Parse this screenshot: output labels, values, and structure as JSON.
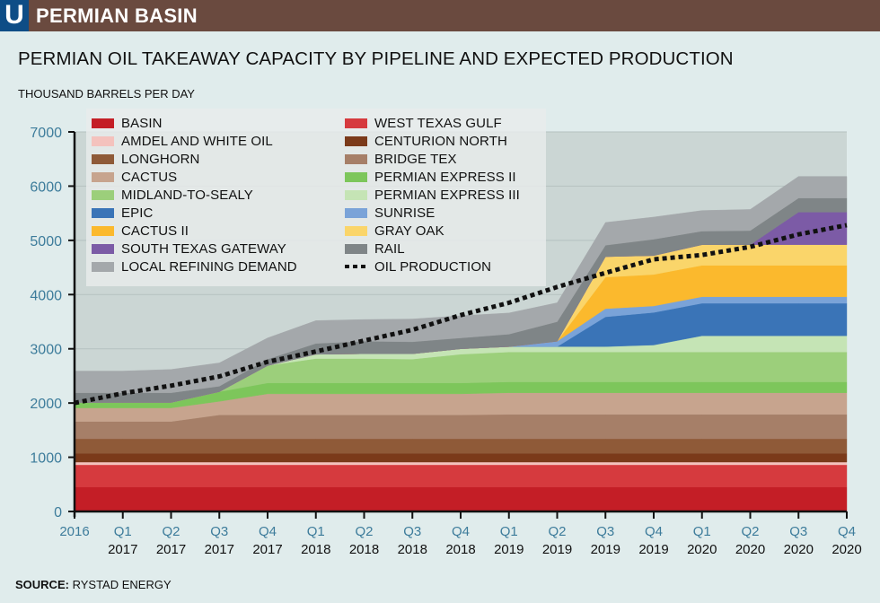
{
  "header": {
    "logo_letter": "U",
    "section_title": "PERMIAN BASIN"
  },
  "chart_data": {
    "type": "area",
    "stacked": true,
    "title": "PERMIAN OIL TAKEAWAY CAPACITY BY PIPELINE AND EXPECTED PRODUCTION",
    "ylabel": "THOUSAND BARRELS PER DAY",
    "xlabel": "",
    "ylim": [
      0,
      7000
    ],
    "yticks": [
      0,
      1000,
      2000,
      3000,
      4000,
      5000,
      6000,
      7000
    ],
    "grid": true,
    "legend_position": "top-left",
    "x_ticks": [
      {
        "q": "2016",
        "year": ""
      },
      {
        "q": "Q1",
        "year": "2017"
      },
      {
        "q": "Q2",
        "year": "2017"
      },
      {
        "q": "Q3",
        "year": "2017"
      },
      {
        "q": "Q4",
        "year": "2017"
      },
      {
        "q": "Q1",
        "year": "2018"
      },
      {
        "q": "Q2",
        "year": "2018"
      },
      {
        "q": "Q3",
        "year": "2018"
      },
      {
        "q": "Q4",
        "year": "2018"
      },
      {
        "q": "Q1",
        "year": "2019"
      },
      {
        "q": "Q2",
        "year": "2019"
      },
      {
        "q": "Q3",
        "year": "2019"
      },
      {
        "q": "Q4",
        "year": "2019"
      },
      {
        "q": "Q1",
        "year": "2020"
      },
      {
        "q": "Q2",
        "year": "2020"
      },
      {
        "q": "Q3",
        "year": "2020"
      },
      {
        "q": "Q4",
        "year": "2020"
      }
    ],
    "categories": [
      "2016",
      "Q1 2017",
      "Q2 2017",
      "Q3 2017",
      "Q4 2017",
      "Q1 2018",
      "Q2 2018",
      "Q3 2018",
      "Q4 2018",
      "Q1 2019",
      "Q2 2019",
      "Q3 2019",
      "Q4 2019",
      "Q1 2020",
      "Q2 2020",
      "Q3 2020",
      "Q4 2020"
    ],
    "series": [
      {
        "name": "BASIN",
        "color": "#c41e26",
        "values": [
          450,
          450,
          450,
          450,
          450,
          450,
          450,
          450,
          450,
          450,
          450,
          450,
          450,
          450,
          450,
          450,
          450
        ]
      },
      {
        "name": "WEST TEXAS GULF",
        "color": "#d63a3e",
        "values": [
          410,
          410,
          410,
          410,
          410,
          410,
          410,
          410,
          410,
          410,
          410,
          410,
          410,
          410,
          410,
          410,
          410
        ]
      },
      {
        "name": "AMDEL AND WHITE OIL",
        "color": "#f4c2bd",
        "values": [
          50,
          50,
          50,
          50,
          50,
          50,
          50,
          50,
          50,
          50,
          50,
          50,
          50,
          50,
          50,
          50,
          50
        ]
      },
      {
        "name": "CENTURION NORTH",
        "color": "#7b3a1a",
        "values": [
          160,
          160,
          160,
          160,
          160,
          160,
          160,
          160,
          160,
          160,
          160,
          160,
          160,
          160,
          160,
          160,
          160
        ]
      },
      {
        "name": "LONGHORN",
        "color": "#8f5a38",
        "values": [
          270,
          270,
          270,
          270,
          270,
          270,
          270,
          270,
          270,
          270,
          270,
          270,
          270,
          270,
          270,
          270,
          270
        ]
      },
      {
        "name": "BRIDGE TEX",
        "color": "#a67f68",
        "values": [
          320,
          320,
          320,
          440,
          440,
          440,
          440,
          440,
          440,
          450,
          450,
          450,
          450,
          450,
          450,
          450,
          450
        ]
      },
      {
        "name": "CACTUS",
        "color": "#c7a48e",
        "values": [
          250,
          250,
          250,
          250,
          390,
          390,
          390,
          390,
          390,
          400,
          400,
          400,
          400,
          400,
          400,
          400,
          400
        ]
      },
      {
        "name": "PERMIAN EXPRESS II",
        "color": "#7dc65b",
        "values": [
          100,
          100,
          100,
          180,
          200,
          200,
          200,
          200,
          200,
          200,
          200,
          200,
          200,
          200,
          200,
          200,
          200
        ]
      },
      {
        "name": "MIDLAND-TO-SEALY",
        "color": "#9ccf7b",
        "values": [
          0,
          0,
          0,
          0,
          320,
          450,
          450,
          440,
          530,
          550,
          550,
          550,
          550,
          550,
          550,
          550,
          550
        ]
      },
      {
        "name": "PERMIAN EXPRESS III",
        "color": "#c5e4b5",
        "values": [
          0,
          0,
          0,
          0,
          0,
          80,
          90,
          100,
          100,
          100,
          100,
          100,
          130,
          300,
          300,
          300,
          300
        ]
      },
      {
        "name": "EPIC",
        "color": "#3a74b7",
        "values": [
          0,
          0,
          0,
          0,
          0,
          0,
          0,
          0,
          0,
          0,
          0,
          550,
          600,
          600,
          600,
          600,
          600
        ]
      },
      {
        "name": "SUNRISE",
        "color": "#7aa3d8",
        "values": [
          0,
          0,
          0,
          0,
          0,
          0,
          0,
          0,
          0,
          0,
          100,
          150,
          120,
          120,
          120,
          120,
          120
        ]
      },
      {
        "name": "CACTUS II",
        "color": "#fbb92d",
        "values": [
          0,
          0,
          0,
          0,
          0,
          0,
          0,
          0,
          0,
          0,
          0,
          580,
          580,
          580,
          580,
          580,
          580
        ]
      },
      {
        "name": "GRAY OAK",
        "color": "#fad56a",
        "values": [
          0,
          0,
          0,
          0,
          0,
          0,
          0,
          0,
          0,
          0,
          0,
          380,
          350,
          380,
          380,
          380,
          380
        ]
      },
      {
        "name": "SOUTH TEXAS GATEWAY",
        "color": "#7c5ba6",
        "values": [
          0,
          0,
          0,
          0,
          0,
          0,
          0,
          0,
          0,
          0,
          0,
          0,
          0,
          0,
          0,
          600,
          600
        ]
      },
      {
        "name": "RAIL",
        "color": "#7f8587",
        "values": [
          180,
          180,
          180,
          100,
          120,
          200,
          230,
          220,
          200,
          230,
          360,
          210,
          300,
          250,
          260,
          260,
          260
        ]
      },
      {
        "name": "LOCAL REFINING DEMAND",
        "color": "#a4a8ab",
        "values": [
          400,
          400,
          430,
          430,
          390,
          420,
          400,
          420,
          410,
          390,
          350,
          420,
          410,
          380,
          390,
          400,
          400
        ]
      }
    ],
    "line_series": {
      "name": "OIL PRODUCTION",
      "color": "#111111",
      "style": "dotted",
      "values": [
        2000,
        2180,
        2320,
        2490,
        2760,
        2950,
        3150,
        3350,
        3620,
        3850,
        4140,
        4400,
        4650,
        4730,
        4880,
        5110,
        5280
      ]
    }
  },
  "legend": {
    "left": [
      {
        "label": "BASIN",
        "color": "#c41e26"
      },
      {
        "label": "AMDEL AND WHITE OIL",
        "color": "#f4c2bd"
      },
      {
        "label": "LONGHORN",
        "color": "#8f5a38"
      },
      {
        "label": "CACTUS",
        "color": "#c7a48e"
      },
      {
        "label": "MIDLAND-TO-SEALY",
        "color": "#9ccf7b"
      },
      {
        "label": "EPIC",
        "color": "#3a74b7"
      },
      {
        "label": "CACTUS II",
        "color": "#fbb92d"
      },
      {
        "label": "SOUTH TEXAS GATEWAY",
        "color": "#7c5ba6"
      },
      {
        "label": "LOCAL REFINING DEMAND",
        "color": "#a4a8ab"
      }
    ],
    "right": [
      {
        "label": "WEST TEXAS GULF",
        "color": "#d63a3e"
      },
      {
        "label": "CENTURION NORTH",
        "color": "#7b3a1a"
      },
      {
        "label": "BRIDGE TEX",
        "color": "#a67f68"
      },
      {
        "label": "PERMIAN EXPRESS II",
        "color": "#7dc65b"
      },
      {
        "label": "PERMIAN EXPRESS III",
        "color": "#c5e4b5"
      },
      {
        "label": "SUNRISE",
        "color": "#7aa3d8"
      },
      {
        "label": "GRAY OAK",
        "color": "#fad56a"
      },
      {
        "label": "RAIL",
        "color": "#7f8587"
      },
      {
        "label": "OIL PRODUCTION",
        "color": "#111111",
        "style": "dotted"
      }
    ]
  },
  "footer": {
    "source_label": "SOURCE:",
    "source_value": "RYSTAD ENERGY"
  }
}
